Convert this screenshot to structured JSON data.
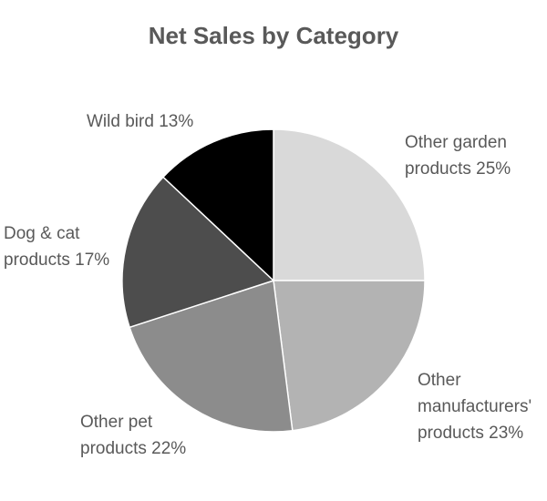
{
  "chart_data": {
    "type": "pie",
    "title": "Net Sales by Category",
    "categories": [
      "Other garden products",
      "Other manufacturers' products",
      "Other pet products",
      "Dog & cat products",
      "Wild bird"
    ],
    "values": [
      25,
      23,
      22,
      17,
      13
    ],
    "value_labels": [
      "25%",
      "23%",
      "22%",
      "17%",
      "13%"
    ],
    "colors": [
      "#d9d9d9",
      "#b3b3b3",
      "#8c8c8c",
      "#4d4d4d",
      "#000000"
    ]
  }
}
